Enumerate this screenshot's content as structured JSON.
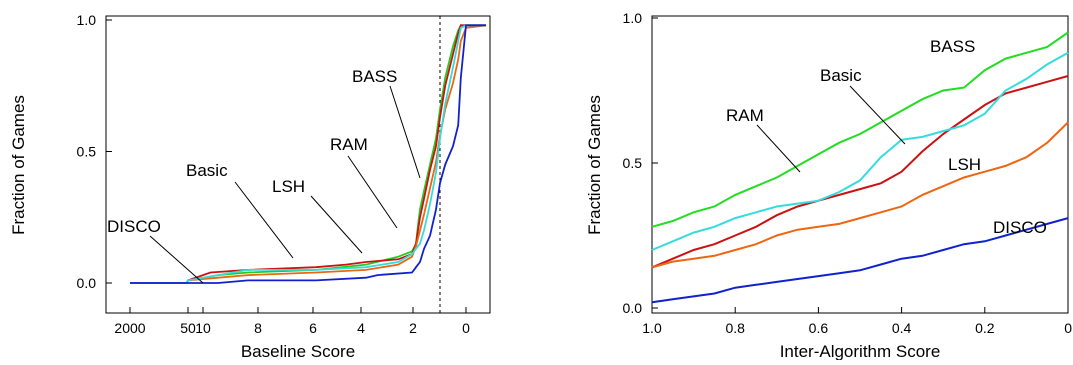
{
  "chart_data": [
    {
      "type": "line",
      "xlabel": "Baseline Score",
      "ylabel": "Fraction of Games",
      "ylim": [
        0.0,
        1.0
      ],
      "yticks": [
        "0.0",
        "0.5",
        "1.0"
      ],
      "xticks": [
        "2000",
        "50",
        "10",
        "8",
        "6",
        "4",
        "2",
        "0"
      ],
      "x_scale": "nonlinear (compressed at high scores)",
      "x_reversed": true,
      "reference_line": {
        "x": 1,
        "style": "dotted"
      },
      "series": [
        {
          "name": "BASS",
          "color": "#22cc22",
          "x": [
            2000,
            100,
            50,
            30,
            10,
            8,
            6,
            4.6,
            4,
            3,
            2.5,
            2,
            1.8,
            1.5,
            1.2,
            1.0,
            0.8,
            0.5,
            0.3,
            0.2,
            0,
            -1
          ],
          "y": [
            0.0,
            0.0,
            0.01,
            0.03,
            0.04,
            0.05,
            0.07,
            0.1,
            0.12,
            0.15,
            0.22,
            0.28,
            0.35,
            0.45,
            0.55,
            0.66,
            0.78,
            0.9,
            0.96,
            0.98,
            0.98,
            0.98
          ]
        },
        {
          "name": "Basic",
          "color": "#cc1111",
          "x": [
            2000,
            100,
            50,
            35,
            10,
            8,
            6.8,
            6,
            4.6,
            4,
            3,
            2.5,
            2,
            1.8,
            1.5,
            1.2,
            1.0,
            0.8,
            0.5,
            0.3,
            0.2,
            0,
            -1
          ],
          "y": [
            0.0,
            0.0,
            0.01,
            0.04,
            0.05,
            0.06,
            0.07,
            0.08,
            0.09,
            0.11,
            0.15,
            0.2,
            0.25,
            0.32,
            0.43,
            0.52,
            0.63,
            0.75,
            0.87,
            0.95,
            0.98,
            0.98,
            0.98
          ]
        },
        {
          "name": "RAM",
          "color": "#ee6611",
          "x": [
            2000,
            100,
            50,
            30,
            10,
            8,
            6,
            4.6,
            4,
            3,
            2.5,
            2,
            1.8,
            1.5,
            1.2,
            1.0,
            0.8,
            0.5,
            0.3,
            0.2,
            0,
            -1
          ],
          "y": [
            0.0,
            0.0,
            0.01,
            0.02,
            0.03,
            0.04,
            0.05,
            0.07,
            0.1,
            0.14,
            0.17,
            0.2,
            0.26,
            0.36,
            0.46,
            0.56,
            0.66,
            0.76,
            0.85,
            0.92,
            0.97,
            0.98
          ]
        },
        {
          "name": "LSH",
          "color": "#33dddd",
          "x": [
            2000,
            100,
            50,
            30,
            10,
            8,
            6,
            4.6,
            4,
            3,
            2.5,
            2,
            1.8,
            1.5,
            1.2,
            1.0,
            0.8,
            0.5,
            0.3,
            0.2,
            0,
            -1
          ],
          "y": [
            0.0,
            0.0,
            0.01,
            0.03,
            0.05,
            0.05,
            0.06,
            0.08,
            0.11,
            0.13,
            0.14,
            0.15,
            0.2,
            0.3,
            0.42,
            0.55,
            0.68,
            0.82,
            0.92,
            0.97,
            0.98,
            0.98
          ]
        },
        {
          "name": "DISCO",
          "color": "#1122cc",
          "x": [
            2000,
            100,
            50,
            30,
            10,
            8,
            6,
            5.5,
            4,
            3.5,
            3,
            2.5,
            2,
            1.8,
            1.5,
            1.2,
            1.0,
            0.8,
            0.5,
            0.3,
            0.2,
            0,
            -1
          ],
          "y": [
            0.0,
            0.0,
            0.0,
            0.0,
            0.01,
            0.01,
            0.02,
            0.03,
            0.04,
            0.05,
            0.06,
            0.07,
            0.08,
            0.13,
            0.18,
            0.28,
            0.38,
            0.45,
            0.52,
            0.6,
            0.78,
            0.98,
            0.98
          ]
        }
      ],
      "annotations": [
        {
          "text": "BASS",
          "points_to": "BASS"
        },
        {
          "text": "RAM",
          "points_to": "RAM"
        },
        {
          "text": "LSH",
          "points_to": "LSH"
        },
        {
          "text": "Basic",
          "points_to": "Basic"
        },
        {
          "text": "DISCO",
          "points_to": "DISCO"
        }
      ]
    },
    {
      "type": "line",
      "xlabel": "Inter-Algorithm Score",
      "ylabel": "Fraction of Games",
      "xlim": [
        1.0,
        0.0
      ],
      "ylim": [
        0.0,
        1.0
      ],
      "xticks": [
        "1.0",
        "0.8",
        "0.6",
        "0.4",
        "0.2",
        "0"
      ],
      "yticks": [
        "0.0",
        "0.5",
        "1.0"
      ],
      "series": [
        {
          "name": "BASS",
          "color": "#22dd22",
          "x": [
            1.0,
            0.95,
            0.9,
            0.85,
            0.8,
            0.75,
            0.7,
            0.65,
            0.6,
            0.55,
            0.5,
            0.45,
            0.4,
            0.35,
            0.3,
            0.25,
            0.2,
            0.15,
            0.1,
            0.05,
            0.0
          ],
          "y": [
            0.28,
            0.3,
            0.33,
            0.35,
            0.39,
            0.42,
            0.45,
            0.49,
            0.53,
            0.57,
            0.6,
            0.64,
            0.68,
            0.72,
            0.75,
            0.76,
            0.82,
            0.86,
            0.88,
            0.9,
            0.95
          ]
        },
        {
          "name": "Basic",
          "color": "#cc1111",
          "x": [
            1.0,
            0.95,
            0.9,
            0.85,
            0.8,
            0.75,
            0.7,
            0.65,
            0.6,
            0.55,
            0.5,
            0.45,
            0.4,
            0.35,
            0.3,
            0.25,
            0.2,
            0.15,
            0.1,
            0.05,
            0.0
          ],
          "y": [
            0.14,
            0.17,
            0.2,
            0.22,
            0.25,
            0.28,
            0.32,
            0.35,
            0.37,
            0.39,
            0.41,
            0.43,
            0.47,
            0.54,
            0.6,
            0.65,
            0.7,
            0.74,
            0.76,
            0.78,
            0.8
          ]
        },
        {
          "name": "RAM",
          "color": "#ee6611",
          "x": [
            1.0,
            0.95,
            0.9,
            0.85,
            0.8,
            0.75,
            0.7,
            0.65,
            0.6,
            0.55,
            0.5,
            0.45,
            0.4,
            0.35,
            0.3,
            0.25,
            0.2,
            0.15,
            0.1,
            0.05,
            0.0
          ],
          "y": [
            0.14,
            0.16,
            0.17,
            0.18,
            0.2,
            0.22,
            0.25,
            0.27,
            0.28,
            0.29,
            0.31,
            0.33,
            0.35,
            0.39,
            0.42,
            0.45,
            0.47,
            0.49,
            0.52,
            0.57,
            0.64
          ]
        },
        {
          "name": "LSH",
          "color": "#33dddd",
          "x": [
            1.0,
            0.95,
            0.9,
            0.85,
            0.8,
            0.75,
            0.7,
            0.65,
            0.6,
            0.55,
            0.5,
            0.45,
            0.4,
            0.35,
            0.3,
            0.25,
            0.2,
            0.15,
            0.1,
            0.05,
            0.0
          ],
          "y": [
            0.2,
            0.23,
            0.26,
            0.28,
            0.31,
            0.33,
            0.35,
            0.36,
            0.37,
            0.4,
            0.44,
            0.52,
            0.58,
            0.59,
            0.61,
            0.63,
            0.67,
            0.75,
            0.79,
            0.84,
            0.88
          ]
        },
        {
          "name": "DISCO",
          "color": "#1122cc",
          "x": [
            1.0,
            0.95,
            0.9,
            0.85,
            0.8,
            0.75,
            0.7,
            0.65,
            0.6,
            0.55,
            0.5,
            0.45,
            0.4,
            0.35,
            0.3,
            0.25,
            0.2,
            0.15,
            0.1,
            0.05,
            0.0
          ],
          "y": [
            0.02,
            0.03,
            0.04,
            0.05,
            0.07,
            0.08,
            0.09,
            0.1,
            0.11,
            0.12,
            0.13,
            0.15,
            0.17,
            0.18,
            0.2,
            0.22,
            0.23,
            0.25,
            0.27,
            0.29,
            0.31
          ]
        }
      ],
      "annotations": [
        {
          "text": "BASS",
          "points_to": null
        },
        {
          "text": "Basic",
          "points_to": "Basic"
        },
        {
          "text": "RAM",
          "points_to": "RAM"
        },
        {
          "text": "LSH",
          "points_to": null
        },
        {
          "text": "DISCO",
          "points_to": null
        }
      ]
    }
  ]
}
